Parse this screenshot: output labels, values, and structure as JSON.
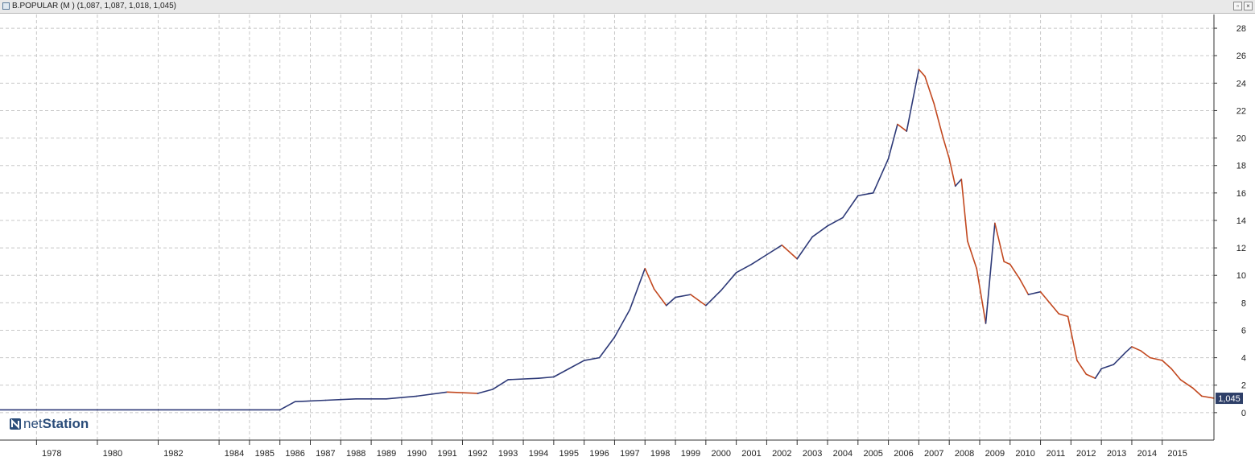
{
  "window": {
    "title": "B.POPULAR (M ) (1,087, 1,087, 1,018, 1,045)",
    "restore_glyph": "▫",
    "close_glyph": "×"
  },
  "watermark": {
    "prefix": "net",
    "suffix": "Station"
  },
  "colors": {
    "up": "#2e3a78",
    "down": "#c2481f",
    "grid": "#c8c8c8",
    "axis": "#333333",
    "badge": "#2e3f68"
  },
  "chart_data": {
    "type": "line",
    "title": "B.POPULAR (M )",
    "xlabel": "",
    "ylabel": "",
    "xlim": [
      1976.8,
      2016.7
    ],
    "ylim": [
      -2,
      29
    ],
    "y_ticks": [
      0,
      2,
      4,
      6,
      8,
      10,
      12,
      14,
      16,
      18,
      20,
      22,
      24,
      26,
      28
    ],
    "x_tick_labels": [
      "1978",
      "1980",
      "1982",
      "1984",
      "1985",
      "1986",
      "1987",
      "1988",
      "1989",
      "1990",
      "1991",
      "1992",
      "1993",
      "1994",
      "1995",
      "1996",
      "1997",
      "1998",
      "1999",
      "2000",
      "2001",
      "2002",
      "2003",
      "2004",
      "2005",
      "2006",
      "2007",
      "2008",
      "2009",
      "2010",
      "2011",
      "2012",
      "2013",
      "2014",
      "2015"
    ],
    "grid": true,
    "last_value": 1.045,
    "last_value_label": "1,045",
    "series": [
      {
        "x": [
          1976.8,
          1978.0,
          1980.0,
          1982.0,
          1984.0,
          1986.0,
          1986.5,
          1987.5,
          1988.5,
          1989.5,
          1990.5,
          1991.5,
          1992.5,
          1993.0,
          1993.5,
          1994.5,
          1995.0,
          1995.5,
          1996.0,
          1996.5,
          1997.0,
          1997.5,
          1998.0,
          1998.3,
          1998.7,
          1999.0,
          1999.5,
          2000.0,
          2000.5,
          2001.0,
          2001.5,
          2002.0,
          2002.5,
          2003.0,
          2003.5,
          2004.0,
          2004.5,
          2005.0,
          2005.5,
          2006.0,
          2006.3,
          2006.6,
          2007.0,
          2007.2,
          2007.5,
          2007.8,
          2008.0,
          2008.2,
          2008.4,
          2008.6,
          2008.9,
          2009.2,
          2009.5,
          2009.8,
          2010.0,
          2010.3,
          2010.6,
          2011.0,
          2011.3,
          2011.6,
          2011.9,
          2012.2,
          2012.5,
          2012.8,
          2013.0,
          2013.4,
          2013.8,
          2014.0,
          2014.3,
          2014.6,
          2015.0,
          2015.3,
          2015.6,
          2016.0,
          2016.3,
          2016.7
        ],
        "y": [
          0.2,
          0.2,
          0.2,
          0.2,
          0.2,
          0.2,
          0.8,
          0.9,
          1.0,
          1.0,
          1.2,
          1.5,
          1.4,
          1.7,
          2.4,
          2.5,
          2.6,
          3.2,
          3.8,
          4.0,
          5.5,
          7.5,
          10.5,
          9.0,
          7.8,
          8.4,
          8.6,
          7.8,
          8.9,
          10.2,
          10.8,
          11.5,
          12.2,
          11.2,
          12.8,
          13.6,
          14.2,
          15.8,
          16.0,
          18.5,
          21.0,
          20.5,
          25.0,
          24.5,
          22.5,
          20.0,
          18.5,
          16.5,
          17.0,
          12.5,
          10.5,
          6.5,
          13.8,
          11.0,
          10.8,
          9.8,
          8.6,
          8.8,
          8.0,
          7.2,
          7.0,
          3.8,
          2.8,
          2.5,
          3.2,
          3.5,
          4.4,
          4.8,
          4.5,
          4.0,
          3.8,
          3.2,
          2.4,
          1.8,
          1.2,
          1.05
        ]
      }
    ]
  }
}
